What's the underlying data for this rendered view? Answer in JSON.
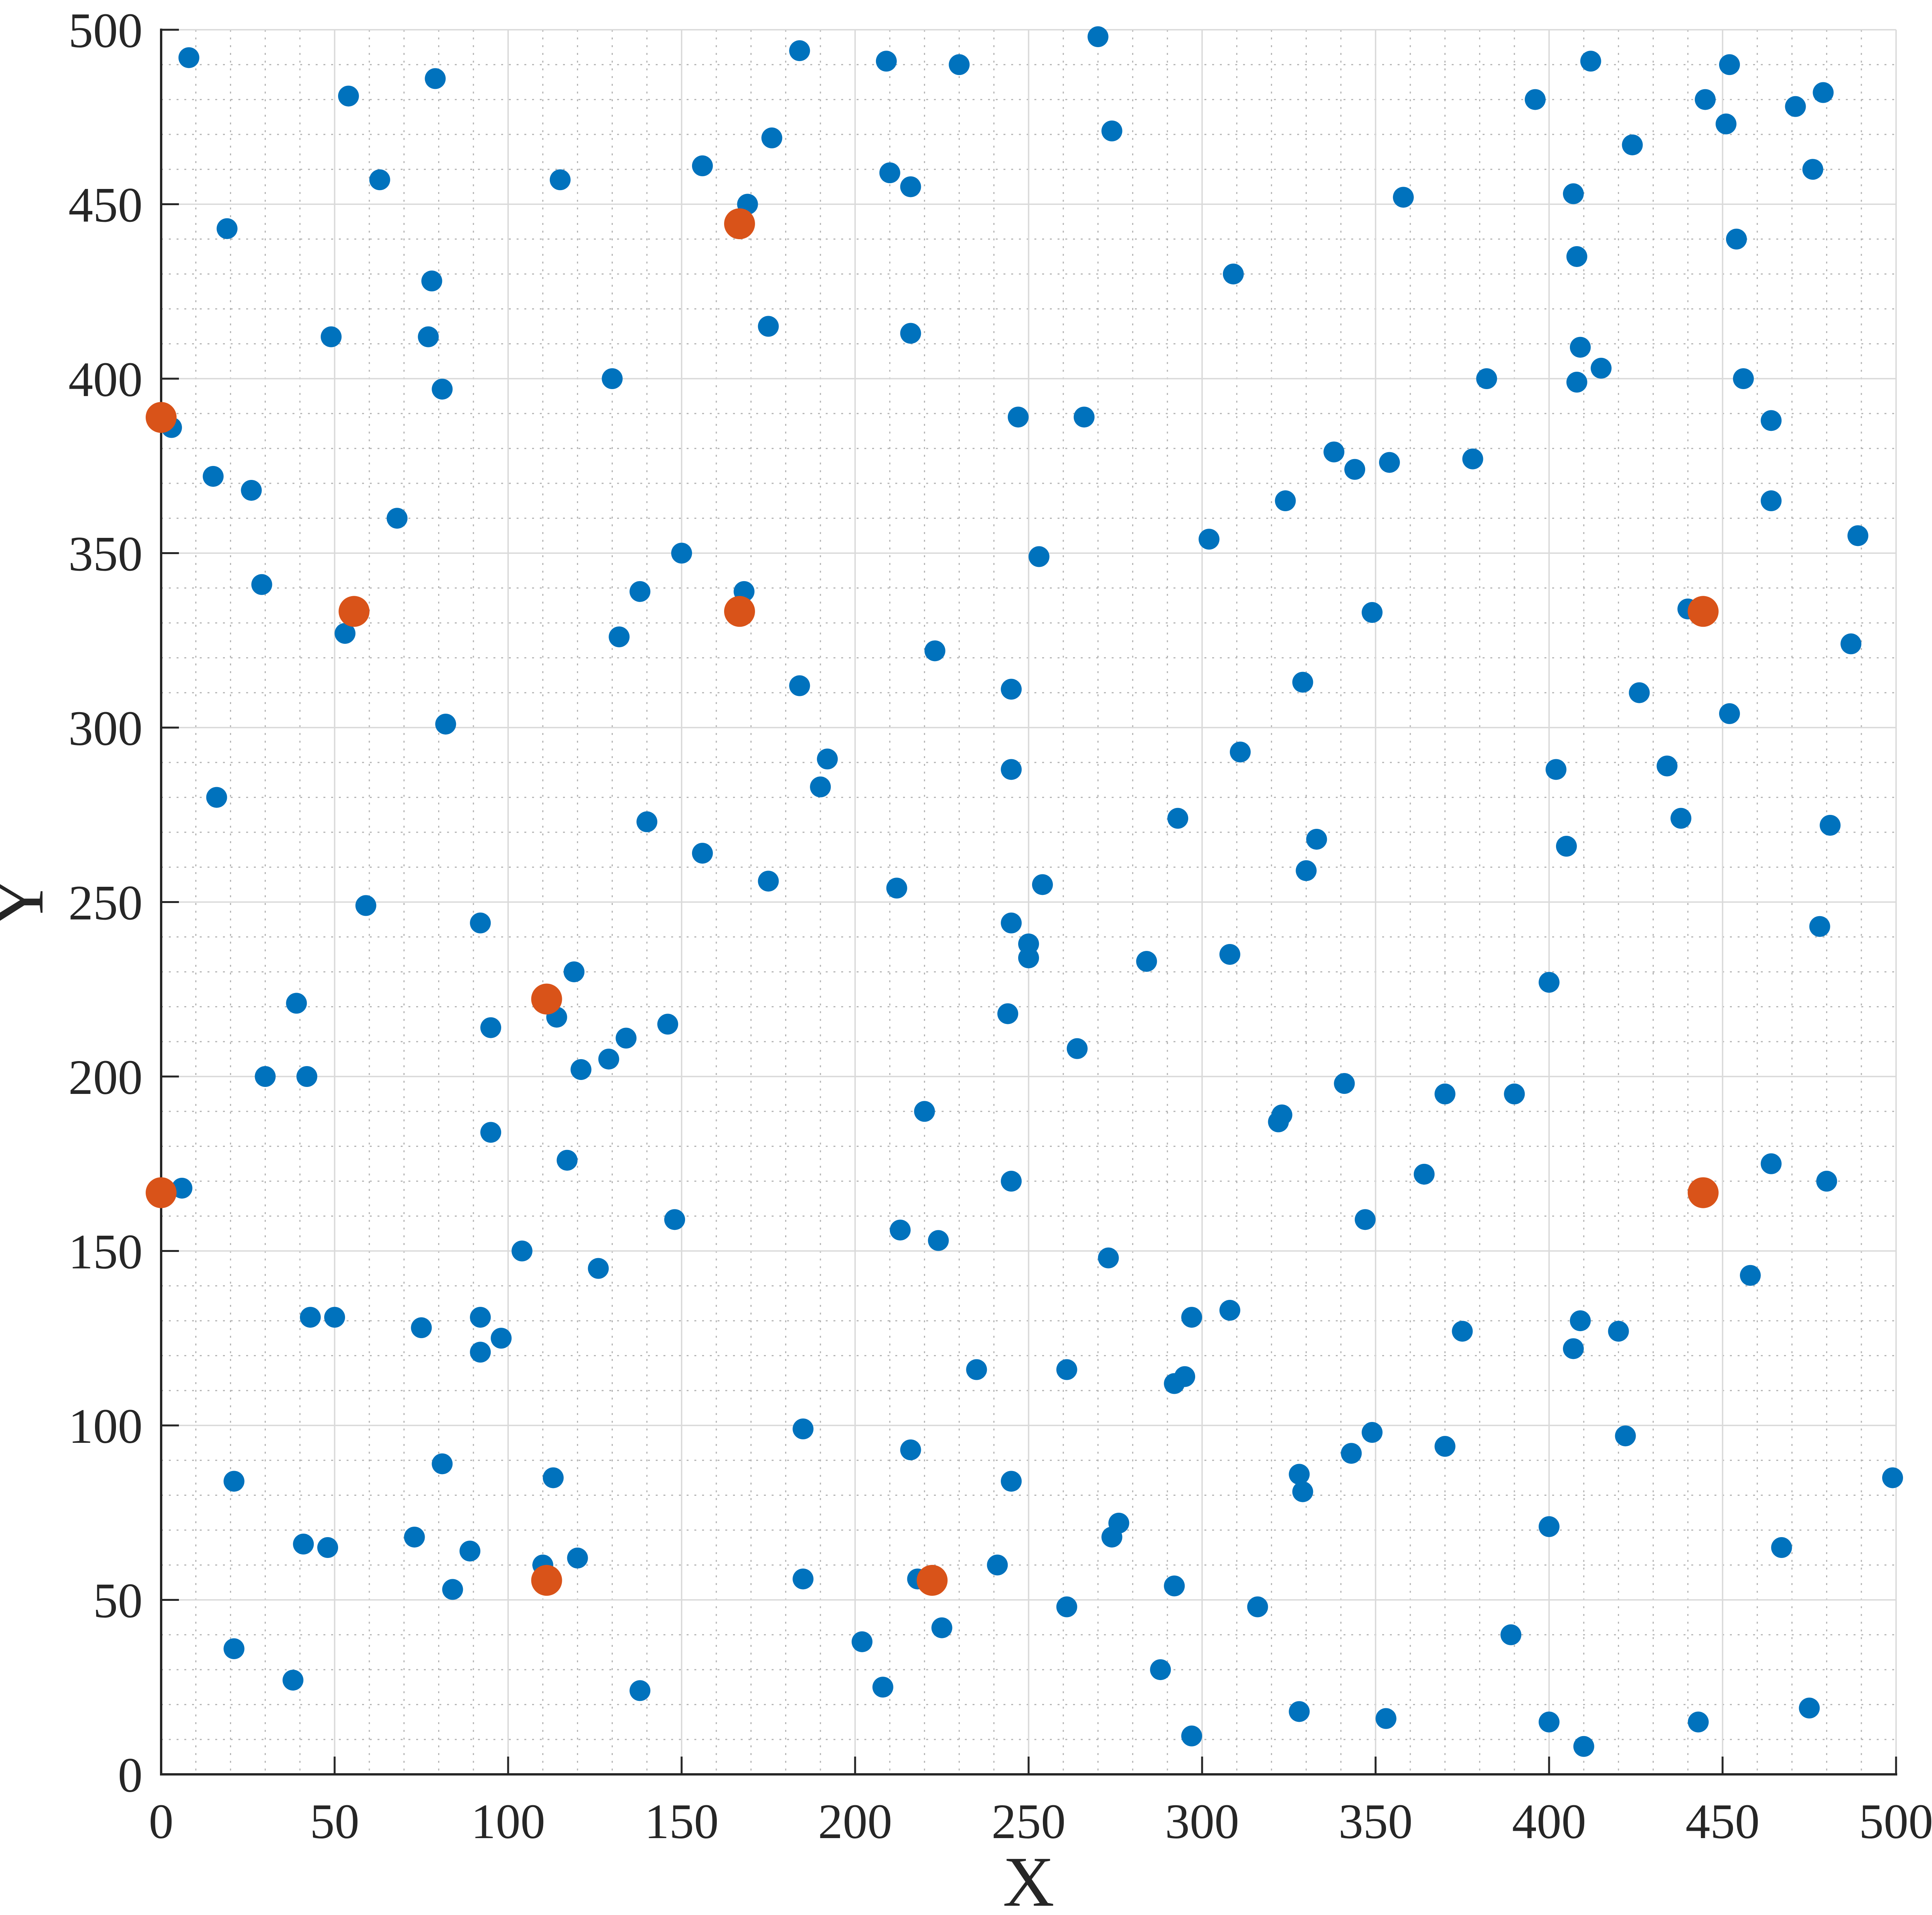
{
  "figure": {
    "background": "#ffffff"
  },
  "chart_data": {
    "type": "scatter",
    "title": "",
    "xlabel": "X",
    "ylabel": "Y",
    "xlim": [
      0,
      500
    ],
    "ylim": [
      0,
      500
    ],
    "xtick_labels": [
      "0",
      "50",
      "100",
      "150",
      "200",
      "250",
      "300",
      "350",
      "400",
      "450",
      "500"
    ],
    "ytick_labels": [
      "0",
      "50",
      "100",
      "150",
      "200",
      "250",
      "300",
      "350",
      "400",
      "450",
      "500"
    ],
    "tick_step": 50,
    "minor_step": 10,
    "grid": {
      "major": true,
      "minor": true,
      "legend": "none"
    },
    "colors": {
      "axis": "#262626",
      "major_grid": "#d9d9d9",
      "minor_grid": "#b3b3b3",
      "blue_marker": "#0072BD",
      "orange_marker": "#D95319"
    },
    "series": [
      {
        "name": "scatter-points",
        "color": "#0072BD",
        "marker_radius_px": 27,
        "points": [
          [
            8,
            492
          ],
          [
            54,
            481
          ],
          [
            79,
            486
          ],
          [
            63,
            457
          ],
          [
            19,
            443
          ],
          [
            78,
            428
          ],
          [
            49,
            412
          ],
          [
            77,
            412
          ],
          [
            81,
            397
          ],
          [
            3,
            386
          ],
          [
            15,
            372
          ],
          [
            184,
            494
          ],
          [
            209,
            491
          ],
          [
            230,
            490
          ],
          [
            176,
            469
          ],
          [
            156,
            461
          ],
          [
            169,
            450
          ],
          [
            115,
            457
          ],
          [
            175,
            415
          ],
          [
            210,
            459
          ],
          [
            216,
            455
          ],
          [
            216,
            413
          ],
          [
            130,
            400
          ],
          [
            270,
            498
          ],
          [
            274,
            471
          ],
          [
            358,
            452
          ],
          [
            309,
            430
          ],
          [
            247,
            389
          ],
          [
            266,
            389
          ],
          [
            338,
            379
          ],
          [
            344,
            374
          ],
          [
            354,
            376
          ],
          [
            412,
            491
          ],
          [
            452,
            490
          ],
          [
            396,
            480
          ],
          [
            445,
            480
          ],
          [
            479,
            482
          ],
          [
            471,
            478
          ],
          [
            451,
            473
          ],
          [
            424,
            467
          ],
          [
            476,
            460
          ],
          [
            407,
            453
          ],
          [
            454,
            440
          ],
          [
            408,
            435
          ],
          [
            409,
            409
          ],
          [
            415,
            403
          ],
          [
            408,
            399
          ],
          [
            382,
            400
          ],
          [
            456,
            400
          ],
          [
            464,
            388
          ],
          [
            378,
            377
          ],
          [
            26,
            368
          ],
          [
            68,
            360
          ],
          [
            29,
            341
          ],
          [
            53,
            327
          ],
          [
            82,
            301
          ],
          [
            16,
            280
          ],
          [
            59,
            249
          ],
          [
            92,
            244
          ],
          [
            150,
            350
          ],
          [
            138,
            339
          ],
          [
            168,
            339
          ],
          [
            132,
            326
          ],
          [
            184,
            312
          ],
          [
            223,
            322
          ],
          [
            192,
            291
          ],
          [
            190,
            283
          ],
          [
            140,
            273
          ],
          [
            156,
            264
          ],
          [
            175,
            256
          ],
          [
            212,
            254
          ],
          [
            324,
            365
          ],
          [
            302,
            354
          ],
          [
            253,
            349
          ],
          [
            349,
            333
          ],
          [
            245,
            311
          ],
          [
            329,
            313
          ],
          [
            311,
            293
          ],
          [
            245,
            288
          ],
          [
            293,
            274
          ],
          [
            333,
            268
          ],
          [
            330,
            259
          ],
          [
            254,
            255
          ],
          [
            245,
            244
          ],
          [
            250,
            238
          ],
          [
            250,
            234
          ],
          [
            284,
            233
          ],
          [
            308,
            235
          ],
          [
            464,
            365
          ],
          [
            489,
            355
          ],
          [
            440,
            334
          ],
          [
            487,
            324
          ],
          [
            426,
            310
          ],
          [
            452,
            304
          ],
          [
            402,
            288
          ],
          [
            434,
            289
          ],
          [
            438,
            274
          ],
          [
            481,
            272
          ],
          [
            405,
            266
          ],
          [
            478,
            243
          ],
          [
            39,
            221
          ],
          [
            30,
            200
          ],
          [
            42,
            200
          ],
          [
            6,
            168
          ],
          [
            43,
            131
          ],
          [
            50,
            131
          ],
          [
            75,
            128
          ],
          [
            119,
            230
          ],
          [
            114,
            217
          ],
          [
            95,
            214
          ],
          [
            134,
            211
          ],
          [
            146,
            215
          ],
          [
            129,
            205
          ],
          [
            121,
            202
          ],
          [
            220,
            190
          ],
          [
            95,
            184
          ],
          [
            117,
            176
          ],
          [
            148,
            159
          ],
          [
            104,
            150
          ],
          [
            126,
            145
          ],
          [
            213,
            156
          ],
          [
            224,
            153
          ],
          [
            92,
            131
          ],
          [
            98,
            125
          ],
          [
            92,
            121
          ],
          [
            185,
            99
          ],
          [
            216,
            93
          ],
          [
            244,
            218
          ],
          [
            264,
            208
          ],
          [
            341,
            198
          ],
          [
            322,
            187
          ],
          [
            323,
            189
          ],
          [
            245,
            170
          ],
          [
            364,
            172
          ],
          [
            347,
            159
          ],
          [
            273,
            148
          ],
          [
            297,
            131
          ],
          [
            308,
            133
          ],
          [
            235,
            116
          ],
          [
            261,
            116
          ],
          [
            292,
            112
          ],
          [
            295,
            114
          ],
          [
            349,
            98
          ],
          [
            343,
            92
          ],
          [
            400,
            227
          ],
          [
            370,
            195
          ],
          [
            390,
            195
          ],
          [
            464,
            175
          ],
          [
            480,
            170
          ],
          [
            458,
            143
          ],
          [
            375,
            127
          ],
          [
            409,
            130
          ],
          [
            420,
            127
          ],
          [
            407,
            122
          ],
          [
            422,
            97
          ],
          [
            370,
            94
          ],
          [
            21,
            84
          ],
          [
            81,
            89
          ],
          [
            41,
            66
          ],
          [
            48,
            65
          ],
          [
            73,
            68
          ],
          [
            89,
            64
          ],
          [
            84,
            53
          ],
          [
            21,
            36
          ],
          [
            38,
            27
          ],
          [
            113,
            85
          ],
          [
            110,
            60
          ],
          [
            120,
            62
          ],
          [
            138,
            24
          ],
          [
            185,
            56
          ],
          [
            218,
            56
          ],
          [
            202,
            38
          ],
          [
            208,
            25
          ],
          [
            225,
            42
          ],
          [
            245,
            84
          ],
          [
            241,
            60
          ],
          [
            274,
            68
          ],
          [
            276,
            72
          ],
          [
            261,
            48
          ],
          [
            292,
            54
          ],
          [
            316,
            48
          ],
          [
            288,
            30
          ],
          [
            297,
            11
          ],
          [
            328,
            18
          ],
          [
            353,
            16
          ],
          [
            328,
            86
          ],
          [
            329,
            81
          ],
          [
            499,
            85
          ],
          [
            400,
            71
          ],
          [
            467,
            65
          ],
          [
            389,
            40
          ],
          [
            400,
            15
          ],
          [
            410,
            8
          ],
          [
            443,
            15
          ],
          [
            475,
            19
          ]
        ]
      },
      {
        "name": "highlighted-points",
        "color": "#D95319",
        "marker_radius_px": 40,
        "points": [
          [
            0,
            388.9
          ],
          [
            166.7,
            444.4
          ],
          [
            55.6,
            333.3
          ],
          [
            166.7,
            333.3
          ],
          [
            444.4,
            333.3
          ],
          [
            111.1,
            222.2
          ],
          [
            0,
            166.7
          ],
          [
            444.4,
            166.7
          ],
          [
            111.1,
            55.6
          ],
          [
            222.2,
            55.6
          ]
        ]
      }
    ]
  }
}
